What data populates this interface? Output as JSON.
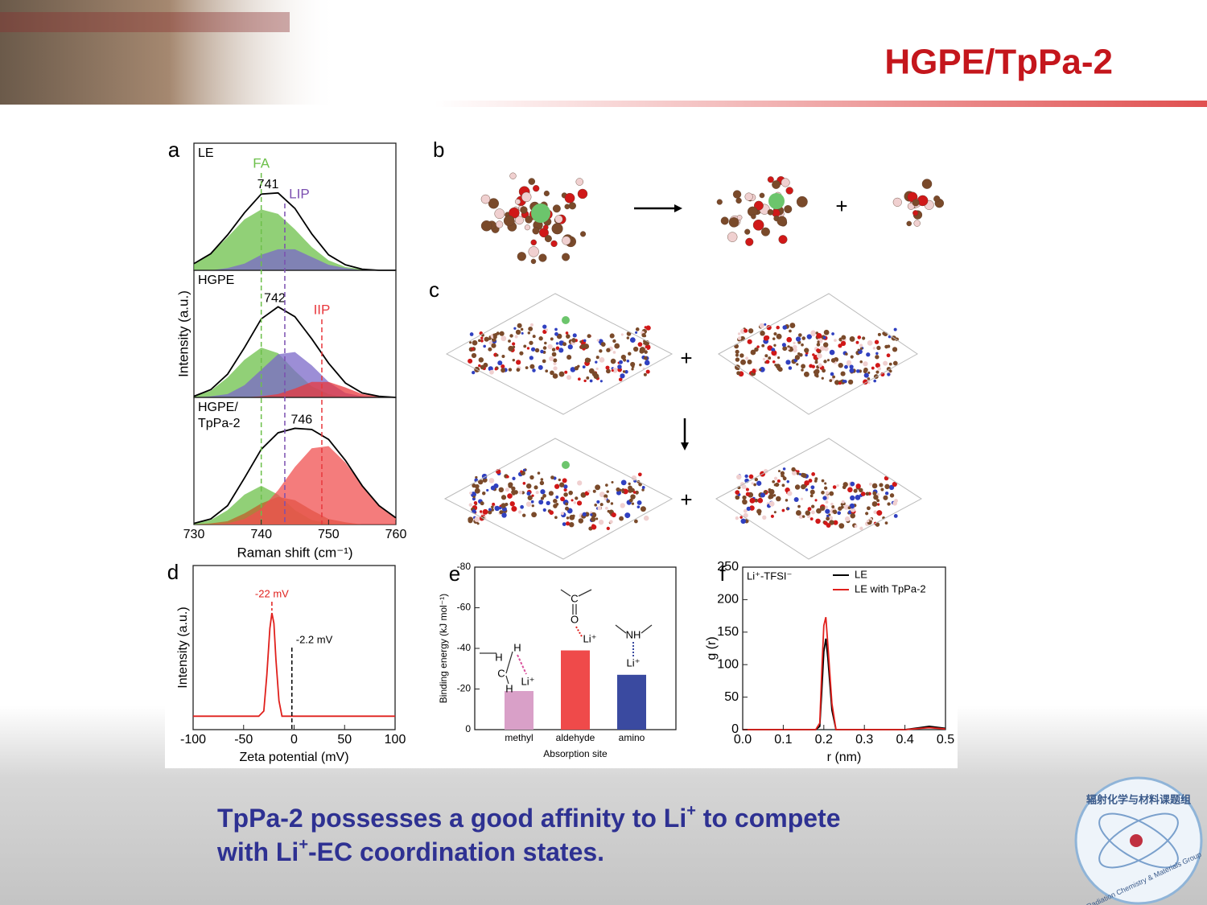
{
  "header": {
    "title": "HGPE/TpPa-2"
  },
  "chart_data": [
    {
      "type": "area",
      "panel_label": "a",
      "xlabel": "Raman shift (cm⁻¹)",
      "ylabel": "Intensity (a.u.)",
      "xlim": [
        730,
        760
      ],
      "xticks": [
        730,
        740,
        750,
        760
      ],
      "ylim": [
        0,
        1.15
      ],
      "x": [
        730,
        732.5,
        735,
        737.5,
        740,
        742.5,
        745,
        747.5,
        750,
        752.5,
        755,
        757.5,
        760
      ],
      "markers": [
        {
          "text": "FA",
          "x": 740,
          "color": "#6cc04a",
          "panel": 0
        },
        {
          "text": "LIP",
          "x": 743.5,
          "color": "#7b4fb0",
          "panel": 0
        },
        {
          "text": "IIP",
          "x": 749,
          "color": "#e8383d",
          "panel": 1
        }
      ],
      "panels": [
        {
          "label": [
            "LE"
          ],
          "peak": 741,
          "series": [
            {
              "color": "#6cc04a",
              "values": [
                0.06,
                0.15,
                0.3,
                0.46,
                0.55,
                0.51,
                0.37,
                0.21,
                0.09,
                0.03,
                0.01,
                0,
                0
              ]
            },
            {
              "color": "#7b68c8",
              "values": [
                0,
                0,
                0.02,
                0.06,
                0.14,
                0.19,
                0.19,
                0.12,
                0.05,
                0.02,
                0,
                0,
                0
              ]
            },
            {
              "color": "#000000",
              "fill": false,
              "values": [
                0.06,
                0.15,
                0.32,
                0.52,
                0.69,
                0.7,
                0.56,
                0.33,
                0.14,
                0.05,
                0.01,
                0,
                0
              ]
            }
          ]
        },
        {
          "label": [
            "HGPE"
          ],
          "peak": 742,
          "series": [
            {
              "color": "#6cc04a",
              "values": [
                0.01,
                0.06,
                0.18,
                0.34,
                0.45,
                0.4,
                0.24,
                0.1,
                0.03,
                0,
                0,
                0,
                0
              ]
            },
            {
              "color": "#7b68c8",
              "values": [
                0,
                0.01,
                0.03,
                0.11,
                0.25,
                0.39,
                0.41,
                0.29,
                0.14,
                0.04,
                0.01,
                0,
                0
              ]
            },
            {
              "color": "#e8383d",
              "values": [
                0,
                0,
                0,
                0,
                0.01,
                0.03,
                0.08,
                0.14,
                0.14,
                0.09,
                0.03,
                0.01,
                0
              ]
            },
            {
              "color": "#000000",
              "fill": false,
              "values": [
                0.01,
                0.07,
                0.21,
                0.45,
                0.71,
                0.82,
                0.73,
                0.53,
                0.31,
                0.13,
                0.04,
                0.01,
                0
              ]
            }
          ]
        },
        {
          "label": [
            "HGPE/",
            "TpPa-2"
          ],
          "peak": 746,
          "series": [
            {
              "color": "#6cc04a",
              "values": [
                0.01,
                0.04,
                0.13,
                0.27,
                0.35,
                0.27,
                0.13,
                0.04,
                0.01,
                0,
                0,
                0,
                0
              ]
            },
            {
              "color": "#c0602a",
              "values": [
                0,
                0.01,
                0.03,
                0.1,
                0.19,
                0.25,
                0.22,
                0.13,
                0.05,
                0.02,
                0,
                0,
                0
              ]
            },
            {
              "color": "#f05050",
              "values": [
                0,
                0,
                0.01,
                0.05,
                0.14,
                0.31,
                0.52,
                0.69,
                0.71,
                0.56,
                0.35,
                0.17,
                0.06
              ]
            },
            {
              "color": "#000000",
              "fill": false,
              "values": [
                0.01,
                0.05,
                0.17,
                0.42,
                0.68,
                0.83,
                0.87,
                0.86,
                0.77,
                0.58,
                0.35,
                0.17,
                0.06
              ]
            }
          ]
        }
      ]
    },
    {
      "type": "line",
      "panel_label": "d",
      "xlabel": "Zeta potential (mV)",
      "ylabel": "Intensity (a.u.)",
      "xlim": [
        -100,
        100
      ],
      "xticks": [
        -100,
        -50,
        0,
        50,
        100
      ],
      "ylim": [
        -0.13,
        1.46
      ],
      "x": [
        -100,
        -35,
        -30,
        -27,
        -24,
        -22,
        -20,
        -18,
        -15,
        -12,
        100
      ],
      "series": [
        {
          "color": "#e0201c",
          "values": [
            0,
            0,
            0.05,
            0.4,
            0.85,
            1,
            0.9,
            0.55,
            0.15,
            0,
            0
          ]
        }
      ],
      "annotations": [
        {
          "text": "-22 mV",
          "x": -22,
          "color": "#e0201c"
        },
        {
          "text": "-2.2 mV",
          "x": -2.2,
          "color": "#000000"
        }
      ]
    },
    {
      "type": "bar",
      "panel_label": "e",
      "xlabel": "Absorption site",
      "ylabel": "Binding energy (kJ mol⁻¹)",
      "categories": [
        "methyl",
        "aldehyde",
        "amino"
      ],
      "values": [
        -19,
        -39,
        -27
      ],
      "colors": [
        "#d9a0c8",
        "#ef4a4a",
        "#3a4aa0"
      ],
      "ylim": [
        0,
        -80
      ],
      "yticks": [
        0,
        -20,
        -40,
        -60,
        -80
      ],
      "annotations": [
        {
          "text": "H"
        },
        {
          "text": "C"
        },
        {
          "text": "H"
        },
        {
          "text": "H"
        },
        {
          "text": "Li⁺"
        },
        {
          "text": "C"
        },
        {
          "text": "O"
        },
        {
          "text": "Li⁺"
        },
        {
          "text": "NH"
        },
        {
          "text": "Li⁺"
        }
      ]
    },
    {
      "type": "line",
      "panel_label": "f",
      "xlabel": "r (nm)",
      "ylabel": "g (r)",
      "xlim": [
        0,
        0.5
      ],
      "xticks": [
        {
          "value": 0,
          "label": "0.0"
        },
        0.1,
        0.2,
        0.3,
        0.4,
        0.5
      ],
      "ylim": [
        0,
        250
      ],
      "yticks": [
        0,
        50,
        100,
        150,
        200,
        250
      ],
      "legend": "upper right",
      "x": [
        0,
        0.18,
        0.19,
        0.195,
        0.2,
        0.205,
        0.21,
        0.22,
        0.23,
        0.4,
        0.46,
        0.5
      ],
      "series": [
        {
          "name": "LE",
          "color": "#000000",
          "values": [
            0,
            0,
            5,
            60,
            120,
            140,
            110,
            30,
            0,
            0,
            5,
            2
          ]
        },
        {
          "name": "LE with TpPa-2",
          "color": "#e0201c",
          "values": [
            0,
            0,
            10,
            90,
            160,
            173,
            130,
            40,
            0,
            0,
            3,
            1
          ]
        }
      ],
      "annotations": [
        {
          "text": "Li⁺-TFSI⁻"
        }
      ]
    }
  ],
  "panels": {
    "b": {
      "label": "b",
      "annotations": [
        "+"
      ]
    },
    "c": {
      "label": "c",
      "annotations": [
        "+",
        "+"
      ]
    }
  },
  "caption": {
    "lines": [
      [
        {
          "text": "TpPa-2 possesses a good affinity to Li"
        },
        {
          "text": "+",
          "sup": true
        },
        {
          "text": " to compete"
        }
      ],
      [
        {
          "text": "with Li"
        },
        {
          "text": "+",
          "sup": true
        },
        {
          "text": "-EC coordination states."
        }
      ]
    ]
  },
  "logo": {
    "texts": [
      "辐射化学与材料课题组",
      "Radiation Chemistry & Materials Group"
    ]
  }
}
